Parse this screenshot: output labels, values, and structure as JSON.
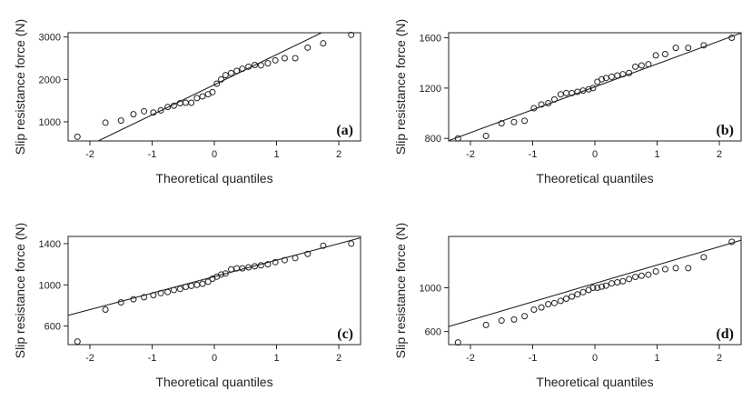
{
  "chart_data": [
    {
      "type": "scatter",
      "panel_label": "(a)",
      "xlabel": "Theoretical quantiles",
      "ylabel": "Slip resistance force (N)",
      "xlim": [
        -2.35,
        2.35
      ],
      "ylim": [
        550,
        3100
      ],
      "xticks": [
        "-2",
        "-1",
        "0",
        "1",
        "2"
      ],
      "yticks": [
        "1000",
        "2000",
        "3000"
      ],
      "reference_line": {
        "x1": -2.5,
        "y1": 100,
        "x2": 2.5,
        "y2": 3650
      },
      "points": {
        "x": [
          -2.2,
          -1.75,
          -1.5,
          -1.3,
          -1.13,
          -0.98,
          -0.86,
          -0.75,
          -0.65,
          -0.55,
          -0.46,
          -0.37,
          -0.28,
          -0.19,
          -0.1,
          -0.03,
          0.04,
          0.11,
          0.18,
          0.27,
          0.36,
          0.45,
          0.55,
          0.65,
          0.75,
          0.86,
          0.98,
          1.13,
          1.3,
          1.5,
          1.75,
          2.2
        ],
        "y": [
          650,
          980,
          1030,
          1180,
          1250,
          1220,
          1270,
          1350,
          1380,
          1440,
          1450,
          1450,
          1560,
          1600,
          1650,
          1700,
          1900,
          2000,
          2100,
          2150,
          2200,
          2250,
          2300,
          2340,
          2330,
          2380,
          2450,
          2500,
          2500,
          2750,
          2850,
          3050
        ]
      }
    },
    {
      "type": "scatter",
      "panel_label": "(b)",
      "xlabel": "Theoretical quantiles",
      "ylabel": "Slip resistance force (N)",
      "xlim": [
        -2.35,
        2.35
      ],
      "ylim": [
        780,
        1640
      ],
      "xticks": [
        "-2",
        "-1",
        "0",
        "1",
        "2"
      ],
      "yticks": [
        "800",
        "1200",
        "1600"
      ],
      "reference_line": {
        "x1": -2.5,
        "y1": 755,
        "x2": 2.5,
        "y2": 1665
      },
      "points": {
        "x": [
          -2.2,
          -1.75,
          -1.5,
          -1.3,
          -1.13,
          -0.98,
          -0.86,
          -0.75,
          -0.65,
          -0.55,
          -0.46,
          -0.37,
          -0.28,
          -0.19,
          -0.1,
          -0.03,
          0.04,
          0.11,
          0.18,
          0.27,
          0.36,
          0.45,
          0.55,
          0.65,
          0.75,
          0.86,
          0.98,
          1.13,
          1.3,
          1.5,
          1.75,
          2.2
        ],
        "y": [
          800,
          820,
          920,
          930,
          940,
          1040,
          1070,
          1080,
          1110,
          1150,
          1160,
          1160,
          1170,
          1180,
          1190,
          1200,
          1250,
          1270,
          1280,
          1290,
          1300,
          1310,
          1320,
          1370,
          1380,
          1390,
          1460,
          1470,
          1520,
          1520,
          1540,
          1600
        ]
      }
    },
    {
      "type": "scatter",
      "panel_label": "(c)",
      "xlabel": "Theoretical quantiles",
      "ylabel": "Slip resistance force (N)",
      "xlim": [
        -2.35,
        2.35
      ],
      "ylim": [
        420,
        1470
      ],
      "xticks": [
        "-2",
        "-1",
        "0",
        "1",
        "2"
      ],
      "yticks": [
        "600",
        "1000",
        "1400"
      ],
      "reference_line": {
        "x1": -2.5,
        "y1": 680,
        "x2": 2.5,
        "y2": 1480
      },
      "points": {
        "x": [
          -2.2,
          -1.75,
          -1.5,
          -1.3,
          -1.13,
          -0.98,
          -0.86,
          -0.75,
          -0.65,
          -0.55,
          -0.46,
          -0.37,
          -0.28,
          -0.19,
          -0.1,
          -0.03,
          0.04,
          0.11,
          0.18,
          0.27,
          0.36,
          0.45,
          0.55,
          0.65,
          0.75,
          0.86,
          0.98,
          1.13,
          1.3,
          1.5,
          1.75,
          2.2
        ],
        "y": [
          450,
          760,
          830,
          860,
          880,
          900,
          920,
          930,
          950,
          960,
          980,
          990,
          1000,
          1010,
          1030,
          1060,
          1080,
          1100,
          1110,
          1150,
          1160,
          1160,
          1170,
          1180,
          1190,
          1200,
          1220,
          1240,
          1260,
          1300,
          1380,
          1400
        ]
      }
    },
    {
      "type": "scatter",
      "panel_label": "(d)",
      "xlabel": "Theoretical quantiles",
      "ylabel": "Slip resistance force (N)",
      "xlim": [
        -2.35,
        2.35
      ],
      "ylim": [
        480,
        1470
      ],
      "xticks": [
        "-2",
        "-1",
        "0",
        "1",
        "2"
      ],
      "yticks": [
        "600",
        "1000"
      ],
      "reference_line": {
        "x1": -2.5,
        "y1": 620,
        "x2": 2.5,
        "y2": 1460
      },
      "points": {
        "x": [
          -2.2,
          -1.75,
          -1.5,
          -1.3,
          -1.13,
          -0.98,
          -0.86,
          -0.75,
          -0.65,
          -0.55,
          -0.46,
          -0.37,
          -0.28,
          -0.19,
          -0.1,
          -0.03,
          0.04,
          0.11,
          0.18,
          0.27,
          0.36,
          0.45,
          0.55,
          0.65,
          0.75,
          0.86,
          0.98,
          1.13,
          1.3,
          1.5,
          1.75,
          2.2
        ],
        "y": [
          500,
          660,
          700,
          710,
          740,
          800,
          820,
          850,
          860,
          880,
          900,
          920,
          940,
          960,
          980,
          1000,
          1000,
          1010,
          1020,
          1040,
          1050,
          1060,
          1080,
          1100,
          1110,
          1120,
          1150,
          1170,
          1180,
          1180,
          1280,
          1420
        ]
      }
    }
  ]
}
